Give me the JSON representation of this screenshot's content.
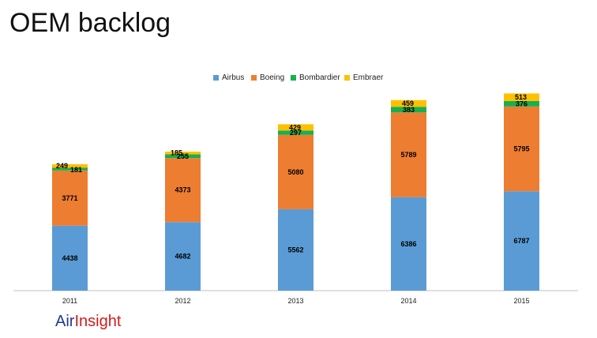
{
  "title": "OEM backlog",
  "brand": {
    "part1": "Air",
    "part2": "Insight"
  },
  "colors": {
    "Airbus": "#5b9bd5",
    "Boeing": "#ed7d31",
    "Bombardier": "#1aae4f",
    "Embraer": "#ffc000"
  },
  "chart_data": {
    "type": "bar",
    "stacked": true,
    "categories": [
      "2011",
      "2012",
      "2013",
      "2014",
      "2015"
    ],
    "series": [
      {
        "name": "Airbus",
        "values": [
          4438,
          4682,
          5562,
          6386,
          6787
        ]
      },
      {
        "name": "Boeing",
        "values": [
          3771,
          4373,
          5080,
          5789,
          5795
        ]
      },
      {
        "name": "Bombardier",
        "values": [
          181,
          255,
          297,
          383,
          376
        ]
      },
      {
        "name": "Embraer",
        "values": [
          249,
          185,
          429,
          459,
          513
        ]
      }
    ],
    "legend_position": "top",
    "grid": false,
    "ylim": [
      0,
      15000
    ]
  }
}
